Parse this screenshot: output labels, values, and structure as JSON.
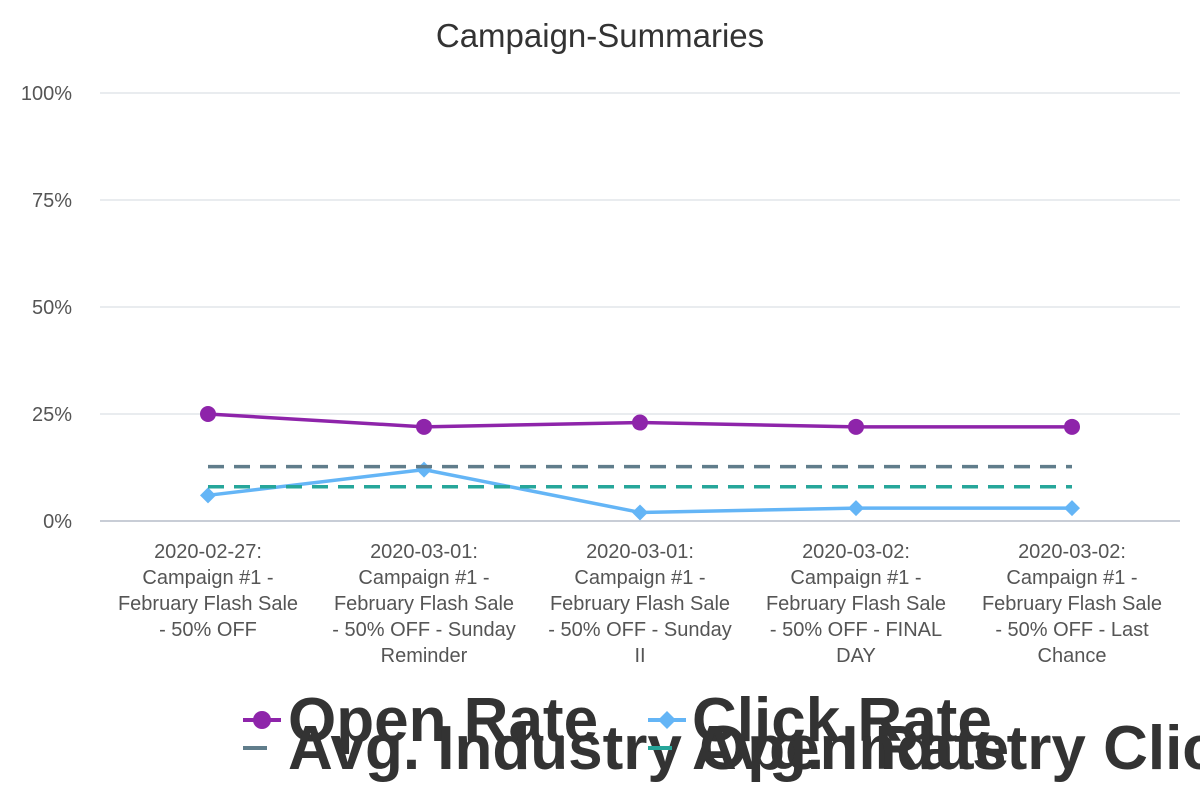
{
  "chart_data": {
    "type": "line",
    "title": "Campaign-Summaries",
    "categories": [
      "2020-02-27: Campaign #1 - February Flash Sale - 50% OFF",
      "2020-03-01: Campaign #1 - February Flash Sale - 50% OFF - Sunday Reminder",
      "2020-03-01: Campaign #1 - February Flash Sale - 50% OFF - Sunday II",
      "2020-03-02: Campaign #1 - February Flash Sale - 50% OFF - FINAL DAY",
      "2020-03-02: Campaign #1 - February Flash Sale - 50% OFF - Last Chance"
    ],
    "category_lines": [
      [
        "2020-02-27:",
        "Campaign #1 -",
        "February Flash Sale",
        "- 50% OFF"
      ],
      [
        "2020-03-01:",
        "Campaign #1 -",
        "February Flash Sale",
        "- 50% OFF - Sunday",
        "Reminder"
      ],
      [
        "2020-03-01:",
        "Campaign #1 -",
        "February Flash Sale",
        "- 50% OFF - Sunday",
        "II"
      ],
      [
        "2020-03-02:",
        "Campaign #1 -",
        "February Flash Sale",
        "- 50% OFF - FINAL",
        "DAY"
      ],
      [
        "2020-03-02:",
        "Campaign #1 -",
        "February Flash Sale",
        "- 50% OFF - Last",
        "Chance"
      ]
    ],
    "ylim": [
      0,
      100
    ],
    "yticks": [
      0,
      25,
      50,
      75,
      100
    ],
    "ytick_labels": [
      "0%",
      "25%",
      "50%",
      "75%",
      "100%"
    ],
    "grid": true,
    "legend_placement": "bottom",
    "series": [
      {
        "name": "Open Rate",
        "values": [
          25,
          22,
          23,
          22,
          22
        ],
        "color": "#8e24aa",
        "style": "solid",
        "marker": "circle"
      },
      {
        "name": "Click Rate",
        "values": [
          6,
          12,
          2,
          3,
          3
        ],
        "color": "#64b5f6",
        "style": "solid",
        "marker": "diamond"
      },
      {
        "name": "Avg. Industry Open Rate",
        "values": [
          12.7,
          12.7,
          12.7,
          12.7,
          12.7
        ],
        "color": "#607d8b",
        "style": "dashed",
        "marker": "none"
      },
      {
        "name": "Avg. Industry Click Rate",
        "values": [
          8,
          8,
          8,
          8,
          8
        ],
        "color": "#26a69a",
        "style": "dashed",
        "marker": "none"
      }
    ]
  }
}
